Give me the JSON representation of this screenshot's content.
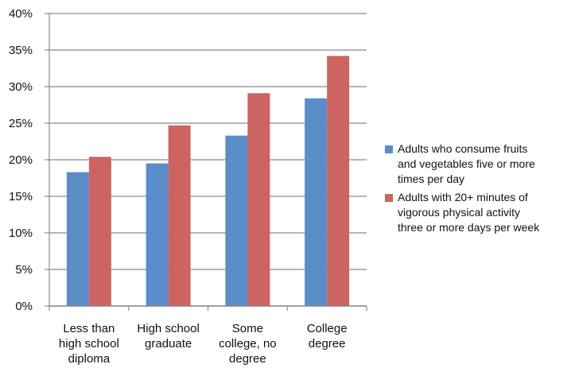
{
  "chart_data": {
    "type": "bar",
    "categories": [
      [
        "Less than",
        "high school",
        "diploma"
      ],
      [
        "High school",
        "graduate"
      ],
      [
        "Some",
        "college, no",
        "degree"
      ],
      [
        "College",
        "degree"
      ]
    ],
    "series": [
      {
        "name": "Adults who consume fruits and vegetables five or more times per day",
        "legend_lines": [
          "Adults who consume fruits",
          "and vegetables five or more",
          "times per day"
        ],
        "color": "#5B8DC9",
        "values": [
          18.3,
          19.5,
          23.3,
          28.4
        ]
      },
      {
        "name": "Adults with 20+ minutes of vigorous physical activity three or more days per week",
        "legend_lines": [
          "Adults with 20+ minutes of",
          "vigorous physical activity",
          "three or more days per week"
        ],
        "color": "#CC6461",
        "values": [
          20.4,
          24.7,
          29.1,
          34.2
        ]
      }
    ],
    "ylim": [
      0,
      40
    ],
    "yticks": [
      0,
      5,
      10,
      15,
      20,
      25,
      30,
      35,
      40
    ],
    "ytick_labels": [
      "0%",
      "5%",
      "10%",
      "15%",
      "20%",
      "25%",
      "30%",
      "35%",
      "40%"
    ],
    "grid": true,
    "legend_position": "right",
    "title": "",
    "xlabel": "",
    "ylabel": ""
  }
}
